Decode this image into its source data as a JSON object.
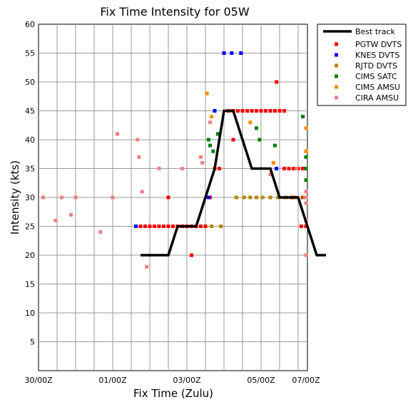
{
  "chart_data": {
    "type": "scatter",
    "title": "Fix Time Intensity for 05W",
    "xlabel": "Fix Time (Zulu)",
    "ylabel": "Intensity (kts)",
    "x_unit": "hours after 30/00Z",
    "xlim": [
      0,
      174
    ],
    "ylim": [
      0,
      60
    ],
    "x_ticks": [
      {
        "x": 0,
        "label": "30/00Z"
      },
      {
        "x": 48,
        "label": "01/00Z"
      },
      {
        "x": 96,
        "label": "03/00Z"
      },
      {
        "x": 144,
        "label": "05/00Z"
      },
      {
        "x": 192,
        "label": "07/00Z"
      }
    ],
    "y_ticks": [
      5,
      10,
      15,
      20,
      25,
      30,
      35,
      40,
      45,
      50,
      55,
      60
    ],
    "grid": true,
    "legend_position": "right",
    "best_track": {
      "name": "Best track",
      "color": "#000000",
      "x": [
        66,
        84,
        90,
        96,
        102,
        108,
        114,
        120,
        126,
        132,
        138,
        144,
        150,
        156,
        162,
        168,
        174,
        180,
        186
      ],
      "y": [
        20,
        20,
        25,
        25,
        25,
        30,
        35,
        45,
        45,
        40,
        35,
        35,
        35,
        30,
        30,
        30,
        25,
        20,
        20
      ]
    },
    "series": [
      {
        "name": "PGTW DVTS",
        "color": "#ff0000",
        "points": [
          [
            66,
            25
          ],
          [
            69,
            25
          ],
          [
            72,
            25
          ],
          [
            75,
            25
          ],
          [
            78,
            25
          ],
          [
            81,
            25
          ],
          [
            84,
            25
          ],
          [
            87,
            25
          ],
          [
            90,
            25
          ],
          [
            93,
            25
          ],
          [
            96,
            25
          ],
          [
            99,
            25
          ],
          [
            102,
            25
          ],
          [
            105,
            25
          ],
          [
            108,
            25
          ],
          [
            84,
            30
          ],
          [
            99,
            20
          ],
          [
            111,
            30
          ],
          [
            114,
            35
          ],
          [
            117,
            35
          ],
          [
            123,
            45
          ],
          [
            126,
            45
          ],
          [
            129,
            45
          ],
          [
            132,
            45
          ],
          [
            135,
            45
          ],
          [
            138,
            45
          ],
          [
            141,
            45
          ],
          [
            144,
            45
          ],
          [
            147,
            45
          ],
          [
            150,
            45
          ],
          [
            153,
            45
          ],
          [
            156,
            45
          ],
          [
            159,
            45
          ],
          [
            126,
            40
          ],
          [
            154,
            50
          ],
          [
            162,
            35
          ],
          [
            165,
            35
          ],
          [
            168,
            35
          ],
          [
            171,
            35
          ],
          [
            174,
            35
          ],
          [
            159,
            35
          ],
          [
            164,
            30
          ],
          [
            171,
            30
          ],
          [
            174,
            30
          ],
          [
            177,
            30
          ],
          [
            170,
            25
          ],
          [
            180,
            25
          ],
          [
            183,
            25
          ]
        ]
      },
      {
        "name": "KNES DVTS",
        "color": "#0000ff",
        "points": [
          [
            63,
            25
          ],
          [
            110,
            30
          ],
          [
            114,
            45
          ],
          [
            120,
            55
          ],
          [
            125,
            55
          ],
          [
            131,
            55
          ],
          [
            154,
            35
          ],
          [
            175,
            35
          ],
          [
            182,
            30
          ]
        ]
      },
      {
        "name": "RJTD DVTS",
        "color": "#b8860b",
        "points": [
          [
            112,
            25
          ],
          [
            118,
            25
          ],
          [
            128,
            30
          ],
          [
            133,
            30
          ],
          [
            137,
            30
          ],
          [
            141,
            30
          ],
          [
            145,
            30
          ],
          [
            150,
            30
          ],
          [
            155,
            30
          ],
          [
            160,
            30
          ],
          [
            166,
            30
          ],
          [
            172,
            30
          ]
        ]
      },
      {
        "name": "CIMS SATC",
        "color": "#008000",
        "points": [
          [
            110,
            40
          ],
          [
            111,
            39
          ],
          [
            113,
            38
          ],
          [
            116,
            41
          ],
          [
            141,
            42
          ],
          [
            143,
            40
          ],
          [
            153,
            39
          ],
          [
            171,
            44
          ],
          [
            177,
            33
          ],
          [
            186,
            37
          ],
          [
            195,
            35
          ]
        ]
      },
      {
        "name": "CIMS AMSU",
        "color": "#ff8c00",
        "points": [
          [
            109,
            48
          ],
          [
            112,
            44
          ],
          [
            137,
            43
          ],
          [
            152,
            36
          ],
          [
            176,
            38
          ],
          [
            185,
            42
          ],
          [
            193,
            38
          ]
        ]
      },
      {
        "name": "CIRA AMSU",
        "color": "#f08080",
        "points": [
          [
            3,
            30
          ],
          [
            11,
            26
          ],
          [
            15,
            30
          ],
          [
            21,
            27
          ],
          [
            24,
            30
          ],
          [
            40,
            24
          ],
          [
            48,
            30
          ],
          [
            51,
            41
          ],
          [
            64,
            40
          ],
          [
            65,
            37
          ],
          [
            67,
            31
          ],
          [
            70,
            18
          ],
          [
            78,
            35
          ],
          [
            93,
            35
          ],
          [
            105,
            37
          ],
          [
            106,
            36
          ],
          [
            111,
            43
          ],
          [
            150,
            34
          ],
          [
            167,
            35
          ],
          [
            173,
            20
          ],
          [
            175,
            26
          ],
          [
            189,
            29
          ],
          [
            195,
            30
          ],
          [
            197,
            31
          ]
        ]
      }
    ]
  }
}
